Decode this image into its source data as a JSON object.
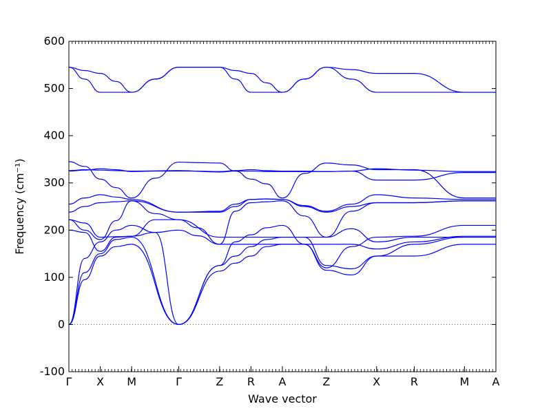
{
  "chart_data": {
    "type": "line",
    "title": "",
    "xlabel": "Wave vector",
    "ylabel": "Frequency (cm⁻¹)",
    "ylim": [
      -100,
      600
    ],
    "yticks": [
      -100,
      0,
      100,
      200,
      300,
      400,
      500,
      600
    ],
    "grid": false,
    "zero_line": {
      "y": 0,
      "style": "dotted"
    },
    "colors": {
      "bands": "#0000ff",
      "axes": "#000000",
      "zero_line": "#555555"
    },
    "xticks": [
      {
        "label": "Γ",
        "x": 0
      },
      {
        "label": "X",
        "x": 1
      },
      {
        "label": "M",
        "x": 2
      },
      {
        "label": "Γ",
        "x": 3.5
      },
      {
        "label": "Z",
        "x": 4.8
      },
      {
        "label": "R",
        "x": 5.8
      },
      {
        "label": "A",
        "x": 6.8
      },
      {
        "label": "Z",
        "x": 8.2
      },
      {
        "label": "X",
        "x": 9.8
      },
      {
        "label": "R",
        "x": 11
      },
      {
        "label": "M",
        "x": 12.6
      },
      {
        "label": "A",
        "x": 13.6
      }
    ],
    "xlim": [
      0,
      13.6
    ],
    "series": [
      {
        "x": [
          0,
          0.5,
          1,
          1.5,
          2,
          3.5,
          4.8,
          5.3,
          5.8,
          6.3,
          6.8,
          7.5,
          8.2,
          9,
          9.8,
          11,
          12.6,
          13.6
        ],
        "values": [
          0,
          95,
          145,
          165,
          170,
          0,
          113,
          130,
          145,
          165,
          170,
          170,
          115,
          105,
          145,
          145,
          170,
          170
        ]
      },
      {
        "x": [
          0,
          0.5,
          1,
          1.5,
          2,
          3.5,
          4.8,
          5.3,
          5.8,
          6.3,
          6.8,
          7.5,
          8.2,
          9,
          9.8,
          11,
          12.6,
          13.6
        ],
        "values": [
          0,
          110,
          150,
          180,
          185,
          0,
          125,
          145,
          165,
          180,
          185,
          185,
          125,
          118,
          145,
          170,
          185,
          185
        ]
      },
      {
        "x": [
          0,
          0.5,
          1,
          1.5,
          2,
          2.75,
          3.5,
          4.1,
          4.8,
          5.8,
          6.8,
          7.5,
          8.2,
          9,
          9.8,
          11,
          12.6,
          13.6
        ],
        "values": [
          200,
          195,
          155,
          185,
          187,
          195,
          200,
          188,
          170,
          170,
          170,
          170,
          170,
          170,
          160,
          175,
          187,
          187
        ]
      },
      {
        "x": [
          0,
          0.5,
          1,
          1.5,
          2,
          2.75,
          3.5,
          4.8,
          5.3,
          5.8,
          6.3,
          6.8,
          7.5,
          8.2,
          9,
          9.8,
          11,
          12.6,
          13.6
        ],
        "values": [
          0,
          140,
          175,
          200,
          210,
          195,
          0,
          125,
          175,
          190,
          205,
          210,
          170,
          120,
          165,
          185,
          187,
          210,
          210
        ]
      },
      {
        "x": [
          0,
          0.5,
          1,
          1.5,
          2,
          2.75,
          3.5,
          4.8,
          5.8,
          6.8,
          7.5,
          8.2,
          9,
          9.8,
          11,
          12.6,
          13.6
        ],
        "values": [
          222,
          215,
          185,
          186,
          187,
          222,
          222,
          185,
          185,
          185,
          185,
          185,
          203,
          175,
          185,
          185,
          185
        ]
      },
      {
        "x": [
          0,
          0.5,
          1,
          1.5,
          2,
          2.75,
          3.5,
          4.1,
          4.8,
          5.3,
          5.8,
          6.3,
          6.8,
          7.5,
          8.2,
          9,
          9.8,
          11,
          12.6,
          13.6
        ],
        "values": [
          222,
          200,
          180,
          220,
          262,
          235,
          222,
          205,
          170,
          240,
          258,
          260,
          262,
          230,
          185,
          240,
          258,
          258,
          262,
          262
        ]
      },
      {
        "x": [
          0,
          0.5,
          1,
          1.5,
          2,
          3.5,
          4.8,
          5.3,
          5.8,
          6.3,
          6.8,
          7.5,
          8.2,
          9,
          9.8,
          11,
          12.6,
          13.6
        ],
        "values": [
          238,
          250,
          258,
          260,
          262,
          238,
          238,
          250,
          265,
          266,
          265,
          250,
          238,
          250,
          258,
          258,
          262,
          262
        ]
      },
      {
        "x": [
          0,
          0.5,
          1,
          1.5,
          2,
          3.5,
          4.8,
          5.3,
          5.8,
          6.3,
          6.8,
          7.5,
          8.2,
          9,
          9.8,
          11,
          12.6,
          13.6
        ],
        "values": [
          255,
          268,
          275,
          270,
          265,
          238,
          240,
          255,
          265,
          266,
          265,
          252,
          240,
          255,
          275,
          268,
          265,
          265
        ]
      },
      {
        "x": [
          0,
          0.5,
          1,
          1.5,
          2,
          2.75,
          3.5,
          4.1,
          4.8,
          5.3,
          5.8,
          6.3,
          6.8,
          7.5,
          8.2,
          9,
          9.8,
          11,
          12.6,
          13.6
        ],
        "values": [
          345,
          335,
          308,
          290,
          268,
          310,
          344,
          343,
          342,
          325,
          308,
          298,
          268,
          320,
          342,
          338,
          328,
          328,
          268,
          268
        ]
      },
      {
        "x": [
          0,
          0.5,
          1,
          1.5,
          2,
          2.75,
          3.5,
          4.1,
          4.8,
          5.3,
          5.8,
          6.3,
          6.8,
          7.5,
          8.2,
          9,
          9.8,
          11,
          12.6,
          13.6
        ],
        "values": [
          325,
          327,
          330,
          328,
          324,
          325,
          325,
          325,
          324,
          326,
          328,
          326,
          325,
          325,
          324,
          325,
          306,
          306,
          322,
          322
        ]
      },
      {
        "x": [
          0,
          0.5,
          1,
          1.5,
          2,
          3.5,
          4.8,
          5.3,
          5.8,
          6.3,
          6.8,
          7.5,
          8.2,
          9,
          9.8,
          11,
          12.6,
          13.6
        ],
        "values": [
          326,
          328,
          327,
          326,
          325,
          326,
          323,
          325,
          325,
          324,
          324,
          324,
          324,
          325,
          330,
          327,
          324,
          324
        ]
      },
      {
        "x": [
          0,
          0.5,
          1,
          1.5,
          2,
          2.75,
          3.5,
          4.1,
          4.8,
          5.3,
          5.8,
          6.3,
          6.8,
          7.5,
          8.2,
          9,
          9.8,
          11,
          12.6,
          13.6
        ],
        "values": [
          545,
          538,
          532,
          515,
          492,
          520,
          545,
          545,
          545,
          538,
          532,
          512,
          492,
          520,
          545,
          540,
          532,
          532,
          492,
          492
        ]
      },
      {
        "x": [
          0,
          0.5,
          1,
          1.5,
          2,
          2.75,
          3.5,
          4.1,
          4.8,
          5.3,
          5.8,
          6.3,
          6.8,
          7.5,
          8.2,
          9,
          9.8,
          11,
          12.6,
          13.6
        ],
        "values": [
          545,
          520,
          492,
          492,
          492,
          520,
          545,
          545,
          545,
          520,
          492,
          492,
          492,
          520,
          545,
          520,
          492,
          492,
          492,
          492
        ]
      }
    ]
  }
}
